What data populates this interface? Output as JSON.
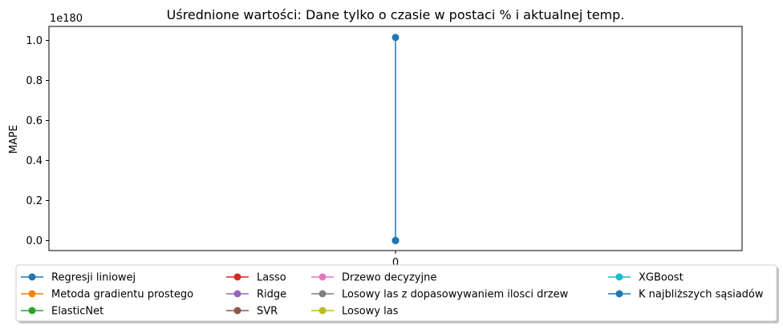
{
  "chart_data": {
    "type": "line",
    "title": "Uśrednione wartości: Dane tylko o czasie w postaci % i aktualnej temp.",
    "xlabel": "",
    "ylabel": "MAPE",
    "y_offset_label": "1e180",
    "x_ticks": [
      "0"
    ],
    "y_ticks": [
      "0.0",
      "0.2",
      "0.4",
      "0.6",
      "0.8",
      "1.0"
    ],
    "xlim": [
      -0.055,
      0.055
    ],
    "ylim": [
      -0.05,
      1.07
    ],
    "y_scale_note": "values in units of 1e180",
    "grid": false,
    "legend_position": "bottom",
    "series": [
      {
        "name": "Regresji liniowej",
        "color": "#1f77b4",
        "x": [
          0
        ],
        "y": [
          0
        ]
      },
      {
        "name": "Metoda gradientu prostego",
        "color": "#ff7f0e",
        "x": [
          0
        ],
        "y": [
          0
        ]
      },
      {
        "name": "ElasticNet",
        "color": "#2ca02c",
        "x": [
          0
        ],
        "y": [
          0
        ]
      },
      {
        "name": "Lasso",
        "color": "#d62728",
        "x": [
          0
        ],
        "y": [
          0
        ]
      },
      {
        "name": "Ridge",
        "color": "#9467bd",
        "x": [
          0
        ],
        "y": [
          0
        ]
      },
      {
        "name": "SVR",
        "color": "#8c564b",
        "x": [
          0
        ],
        "y": [
          0
        ]
      },
      {
        "name": "Drzewo decyzyjne",
        "color": "#e377c2",
        "x": [
          0
        ],
        "y": [
          0
        ]
      },
      {
        "name": "Losowy las z dopasowywaniem ilosci drzew",
        "color": "#7f7f7f",
        "x": [
          0
        ],
        "y": [
          0
        ]
      },
      {
        "name": "Losowy las",
        "color": "#bcbd22",
        "x": [
          0
        ],
        "y": [
          0
        ]
      },
      {
        "name": "XGBoost",
        "color": "#17becf",
        "x": [
          0
        ],
        "y": [
          0
        ]
      },
      {
        "name": "K najbliższych sąsiadów",
        "color": "#1f77b4",
        "x": [
          0,
          0
        ],
        "y": [
          0,
          1.015
        ]
      }
    ]
  }
}
